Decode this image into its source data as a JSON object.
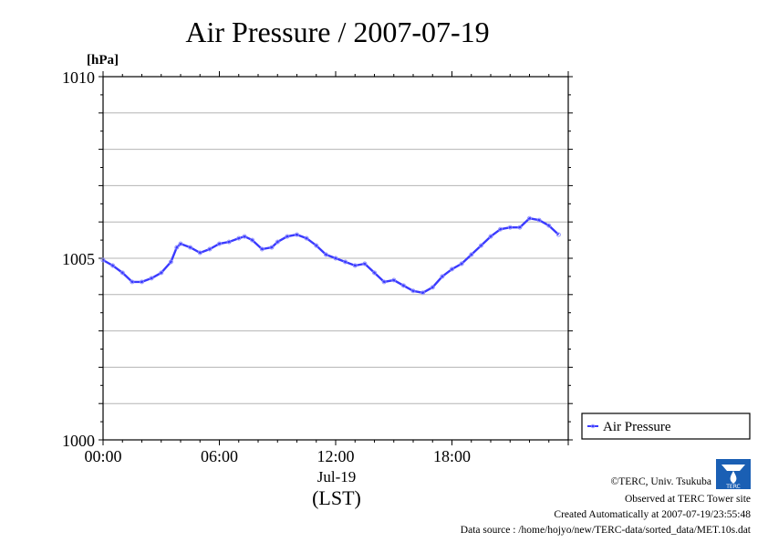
{
  "chart_data": {
    "type": "line",
    "title": "Air Pressure / 2007-07-19",
    "ylabel_unit": "[hPa]",
    "ylim": [
      1000,
      1010
    ],
    "y_ticks": [
      "1010",
      "1005",
      "1000"
    ],
    "x_ticks": [
      "00:00",
      "06:00",
      "12:00",
      "18:00"
    ],
    "x_range_hours": [
      0,
      23.5
    ],
    "x_date_label": "Jul-19",
    "x_axis_note": "(LST)",
    "grid": true,
    "legend_position": "bottom-right",
    "series": [
      {
        "name": "Air Pressure",
        "color": "#3a3aff",
        "points": [
          [
            0,
            1004.95
          ],
          [
            0.5,
            1004.8
          ],
          [
            1.0,
            1004.6
          ],
          [
            1.5,
            1004.35
          ],
          [
            2.0,
            1004.35
          ],
          [
            2.5,
            1004.45
          ],
          [
            3.0,
            1004.6
          ],
          [
            3.5,
            1004.9
          ],
          [
            3.8,
            1005.3
          ],
          [
            4.0,
            1005.4
          ],
          [
            4.5,
            1005.3
          ],
          [
            5.0,
            1005.15
          ],
          [
            5.5,
            1005.25
          ],
          [
            6.0,
            1005.4
          ],
          [
            6.5,
            1005.45
          ],
          [
            7.0,
            1005.55
          ],
          [
            7.3,
            1005.6
          ],
          [
            7.7,
            1005.5
          ],
          [
            8.2,
            1005.25
          ],
          [
            8.7,
            1005.3
          ],
          [
            9.0,
            1005.45
          ],
          [
            9.5,
            1005.6
          ],
          [
            10.0,
            1005.65
          ],
          [
            10.5,
            1005.55
          ],
          [
            11.0,
            1005.35
          ],
          [
            11.5,
            1005.1
          ],
          [
            12.0,
            1005.0
          ],
          [
            12.5,
            1004.9
          ],
          [
            13.0,
            1004.8
          ],
          [
            13.5,
            1004.85
          ],
          [
            14.0,
            1004.6
          ],
          [
            14.5,
            1004.35
          ],
          [
            15.0,
            1004.4
          ],
          [
            15.5,
            1004.25
          ],
          [
            16.0,
            1004.1
          ],
          [
            16.5,
            1004.05
          ],
          [
            17.0,
            1004.2
          ],
          [
            17.5,
            1004.5
          ],
          [
            18.0,
            1004.7
          ],
          [
            18.5,
            1004.85
          ],
          [
            19.0,
            1005.1
          ],
          [
            19.5,
            1005.35
          ],
          [
            20.0,
            1005.6
          ],
          [
            20.5,
            1005.8
          ],
          [
            21.0,
            1005.85
          ],
          [
            21.5,
            1005.85
          ],
          [
            22.0,
            1006.1
          ],
          [
            22.5,
            1006.05
          ],
          [
            23.0,
            1005.9
          ],
          [
            23.5,
            1005.65
          ]
        ]
      }
    ]
  },
  "credits": {
    "copyright": "©TERC, Univ. Tsukuba",
    "observed": "Observed at TERC Tower site",
    "created": "Created Automatically at 2007-07-19/23:55:48",
    "source": "Data source : /home/hojyo/new/TERC-data/sorted_data/MET.10s.dat",
    "logo_text": "TERC"
  }
}
